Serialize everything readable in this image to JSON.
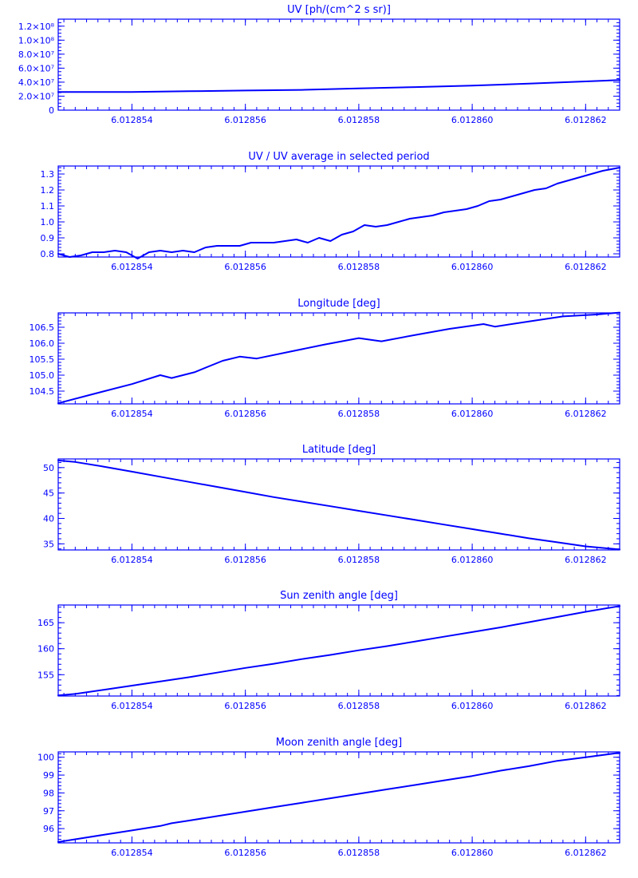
{
  "chart_data": [
    {
      "type": "line",
      "title": "UV [ph/(cm^2 s sr)]",
      "xlim": [
        6.0128527,
        6.0128626
      ],
      "ylim": [
        0,
        130000000
      ],
      "x_ticks": [
        {
          "value": 6.012854,
          "label": "6.012854"
        },
        {
          "value": 6.012856,
          "label": "6.012856"
        },
        {
          "value": 6.012858,
          "label": "6.012858"
        },
        {
          "value": 6.01286,
          "label": "6.012860"
        },
        {
          "value": 6.012862,
          "label": "6.012862"
        }
      ],
      "y_ticks": [
        {
          "value": 0,
          "label": "0"
        },
        {
          "value": 20000000,
          "label": "2.0×10⁷"
        },
        {
          "value": 40000000,
          "label": "4.0×10⁷"
        },
        {
          "value": 60000000,
          "label": "6.0×10⁷"
        },
        {
          "value": 80000000,
          "label": "8.0×10⁷"
        },
        {
          "value": 100000000,
          "label": "1.0×10⁸"
        },
        {
          "value": 120000000,
          "label": "1.2×10⁸"
        }
      ],
      "x_minor_step": 2e-07,
      "y_minor_step": 5000000,
      "series": [
        {
          "x": [
            6.0128527,
            6.012854,
            6.012855,
            6.012856,
            6.012857,
            6.012858,
            6.012859,
            6.01286,
            6.012861,
            6.012862,
            6.0128626
          ],
          "y": [
            26000000,
            26000000,
            27000000,
            28000000,
            29000000,
            31000000,
            33000000,
            35000000,
            38000000,
            41000000,
            43000000
          ]
        }
      ]
    },
    {
      "type": "line",
      "title": "UV / UV average in selected period",
      "xlim": [
        6.0128527,
        6.0128626
      ],
      "ylim": [
        0.78,
        1.35
      ],
      "x_ticks": [
        {
          "value": 6.012854,
          "label": "6.012854"
        },
        {
          "value": 6.012856,
          "label": "6.012856"
        },
        {
          "value": 6.012858,
          "label": "6.012858"
        },
        {
          "value": 6.01286,
          "label": "6.012860"
        },
        {
          "value": 6.012862,
          "label": "6.012862"
        }
      ],
      "y_ticks": [
        {
          "value": 0.8,
          "label": "0.8"
        },
        {
          "value": 0.9,
          "label": "0.9"
        },
        {
          "value": 1.0,
          "label": "1.0"
        },
        {
          "value": 1.1,
          "label": "1.1"
        },
        {
          "value": 1.2,
          "label": "1.2"
        },
        {
          "value": 1.3,
          "label": "1.3"
        }
      ],
      "x_minor_step": 2e-07,
      "y_minor_step": 0.02,
      "series": [
        {
          "x": [
            6.0128527,
            6.0128529,
            6.0128531,
            6.0128533,
            6.0128535,
            6.0128537,
            6.0128539,
            6.0128541,
            6.0128543,
            6.0128545,
            6.0128547,
            6.0128549,
            6.0128551,
            6.0128553,
            6.0128555,
            6.0128557,
            6.0128559,
            6.0128561,
            6.0128563,
            6.0128565,
            6.0128567,
            6.0128569,
            6.0128571,
            6.0128573,
            6.0128575,
            6.0128577,
            6.0128579,
            6.0128581,
            6.0128583,
            6.0128585,
            6.0128587,
            6.0128589,
            6.0128591,
            6.0128593,
            6.0128595,
            6.0128597,
            6.0128599,
            6.0128601,
            6.0128603,
            6.0128605,
            6.0128607,
            6.0128609,
            6.0128611,
            6.0128613,
            6.0128615,
            6.0128617,
            6.0128619,
            6.0128621,
            6.0128623,
            6.0128626
          ],
          "y": [
            0.8,
            0.78,
            0.79,
            0.81,
            0.81,
            0.82,
            0.81,
            0.77,
            0.81,
            0.82,
            0.81,
            0.82,
            0.81,
            0.84,
            0.85,
            0.85,
            0.85,
            0.87,
            0.87,
            0.87,
            0.88,
            0.89,
            0.87,
            0.9,
            0.88,
            0.92,
            0.94,
            0.98,
            0.97,
            0.98,
            1.0,
            1.02,
            1.03,
            1.04,
            1.06,
            1.07,
            1.08,
            1.1,
            1.13,
            1.14,
            1.16,
            1.18,
            1.2,
            1.21,
            1.24,
            1.26,
            1.28,
            1.3,
            1.32,
            1.34
          ]
        }
      ]
    },
    {
      "type": "line",
      "title": "Longitude [deg]",
      "xlim": [
        6.0128527,
        6.0128626
      ],
      "ylim": [
        104.1,
        106.95
      ],
      "x_ticks": [
        {
          "value": 6.012854,
          "label": "6.012854"
        },
        {
          "value": 6.012856,
          "label": "6.012856"
        },
        {
          "value": 6.012858,
          "label": "6.012858"
        },
        {
          "value": 6.01286,
          "label": "6.012860"
        },
        {
          "value": 6.012862,
          "label": "6.012862"
        }
      ],
      "y_ticks": [
        {
          "value": 104.5,
          "label": "104.5"
        },
        {
          "value": 105.0,
          "label": "105.0"
        },
        {
          "value": 105.5,
          "label": "105.5"
        },
        {
          "value": 106.0,
          "label": "106.0"
        },
        {
          "value": 106.5,
          "label": "106.5"
        }
      ],
      "x_minor_step": 2e-07,
      "y_minor_step": 0.1,
      "series": [
        {
          "x": [
            6.0128527,
            6.0128533,
            6.012854,
            6.0128545,
            6.0128547,
            6.0128551,
            6.0128556,
            6.0128559,
            6.0128562,
            6.0128568,
            6.0128574,
            6.012858,
            6.0128584,
            6.012859,
            6.0128596,
            6.0128602,
            6.0128604,
            6.012861,
            6.0128616,
            6.0128622,
            6.0128626
          ],
          "y": [
            104.12,
            104.4,
            104.72,
            105.0,
            104.91,
            105.09,
            105.45,
            105.58,
            105.52,
            105.74,
            105.96,
            106.16,
            106.06,
            106.26,
            106.45,
            106.6,
            106.52,
            106.68,
            106.84,
            106.9,
            106.96
          ]
        }
      ]
    },
    {
      "type": "line",
      "title": "Latitude [deg]",
      "xlim": [
        6.0128527,
        6.0128626
      ],
      "ylim": [
        33.8,
        51.7
      ],
      "x_ticks": [
        {
          "value": 6.012854,
          "label": "6.012854"
        },
        {
          "value": 6.012856,
          "label": "6.012856"
        },
        {
          "value": 6.012858,
          "label": "6.012858"
        },
        {
          "value": 6.01286,
          "label": "6.012860"
        },
        {
          "value": 6.012862,
          "label": "6.012862"
        }
      ],
      "y_ticks": [
        {
          "value": 35,
          "label": "35"
        },
        {
          "value": 40,
          "label": "40"
        },
        {
          "value": 45,
          "label": "45"
        },
        {
          "value": 50,
          "label": "50"
        }
      ],
      "x_minor_step": 2e-07,
      "y_minor_step": 1,
      "series": [
        {
          "x": [
            6.0128527,
            6.012853,
            6.0128535,
            6.012854,
            6.0128545,
            6.012855,
            6.0128555,
            6.012856,
            6.0128565,
            6.012857,
            6.0128575,
            6.012858,
            6.0128585,
            6.012859,
            6.0128595,
            6.01286,
            6.0128605,
            6.012861,
            6.0128615,
            6.012862,
            6.0128626
          ],
          "y": [
            51.4,
            51.1,
            50.2,
            49.2,
            48.2,
            47.2,
            46.2,
            45.2,
            44.2,
            43.3,
            42.4,
            41.5,
            40.6,
            39.7,
            38.8,
            37.9,
            37.0,
            36.1,
            35.3,
            34.5,
            33.9
          ]
        }
      ]
    },
    {
      "type": "line",
      "title": "Sun zenith angle [deg]",
      "xlim": [
        6.0128527,
        6.0128626
      ],
      "ylim": [
        150.9,
        168.4
      ],
      "x_ticks": [
        {
          "value": 6.012854,
          "label": "6.012854"
        },
        {
          "value": 6.012856,
          "label": "6.012856"
        },
        {
          "value": 6.012858,
          "label": "6.012858"
        },
        {
          "value": 6.01286,
          "label": "6.012860"
        },
        {
          "value": 6.012862,
          "label": "6.012862"
        }
      ],
      "y_ticks": [
        {
          "value": 155,
          "label": "155"
        },
        {
          "value": 160,
          "label": "160"
        },
        {
          "value": 165,
          "label": "165"
        }
      ],
      "x_minor_step": 2e-07,
      "y_minor_step": 1,
      "series": [
        {
          "x": [
            6.0128527,
            6.012853,
            6.0128535,
            6.012854,
            6.0128545,
            6.012855,
            6.0128555,
            6.012856,
            6.0128565,
            6.012857,
            6.0128575,
            6.012858,
            6.0128585,
            6.012859,
            6.0128595,
            6.01286,
            6.0128605,
            6.012861,
            6.0128615,
            6.012862,
            6.0128626
          ],
          "y": [
            151.0,
            151.3,
            152.1,
            152.9,
            153.7,
            154.5,
            155.4,
            156.3,
            157.1,
            158.0,
            158.8,
            159.7,
            160.5,
            161.4,
            162.3,
            163.2,
            164.1,
            165.1,
            166.1,
            167.1,
            168.2
          ]
        }
      ]
    },
    {
      "type": "line",
      "title": "Moon zenith angle [deg]",
      "xlim": [
        6.0128527,
        6.0128626
      ],
      "ylim": [
        95.2,
        100.3
      ],
      "x_ticks": [
        {
          "value": 6.012854,
          "label": "6.012854"
        },
        {
          "value": 6.012856,
          "label": "6.012856"
        },
        {
          "value": 6.012858,
          "label": "6.012858"
        },
        {
          "value": 6.01286,
          "label": "6.012860"
        },
        {
          "value": 6.012862,
          "label": "6.012862"
        }
      ],
      "y_ticks": [
        {
          "value": 96,
          "label": "96"
        },
        {
          "value": 97,
          "label": "97"
        },
        {
          "value": 98,
          "label": "98"
        },
        {
          "value": 99,
          "label": "99"
        },
        {
          "value": 100,
          "label": "100"
        }
      ],
      "x_minor_step": 2e-07,
      "y_minor_step": 0.2,
      "series": [
        {
          "x": [
            6.0128527,
            6.012853,
            6.0128535,
            6.012854,
            6.0128545,
            6.0128547,
            6.012855,
            6.0128555,
            6.012856,
            6.0128565,
            6.012857,
            6.0128575,
            6.012858,
            6.0128585,
            6.012859,
            6.0128595,
            6.01286,
            6.0128605,
            6.012861,
            6.0128615,
            6.012862,
            6.0128626
          ],
          "y": [
            95.25,
            95.4,
            95.65,
            95.9,
            96.15,
            96.3,
            96.45,
            96.7,
            96.95,
            97.2,
            97.45,
            97.7,
            97.95,
            98.2,
            98.45,
            98.7,
            98.95,
            99.25,
            99.5,
            99.8,
            100.0,
            100.25
          ]
        }
      ]
    }
  ]
}
